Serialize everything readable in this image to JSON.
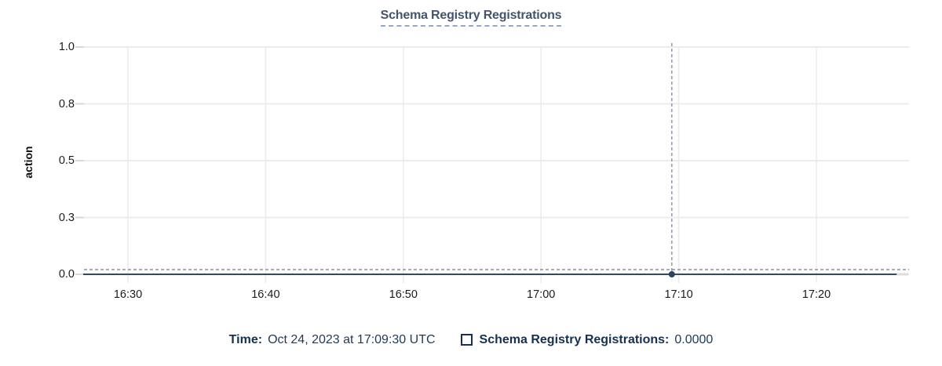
{
  "header": {
    "title": "Schema Registry Registrations"
  },
  "chart_data": {
    "type": "line",
    "title": "Schema Registry Registrations",
    "xlabel": "",
    "ylabel": "action",
    "ylim": [
      0,
      1
    ],
    "grid": true,
    "legend_position": "bottom",
    "y_tick_labels": [
      "1.0",
      "0.8",
      "0.5",
      "0.3",
      "0.0"
    ],
    "y_tick_values": [
      1.0,
      0.75,
      0.5,
      0.25,
      0.0
    ],
    "x_tick_labels": [
      "16:30",
      "16:40",
      "16:50",
      "17:00",
      "17:10",
      "17:20"
    ],
    "x_tick_interval_minutes": 10,
    "series": [
      {
        "name": "Schema Registry Registrations",
        "color": "#33495f",
        "y_constant": 0,
        "x_start": "16:26:45",
        "x_end": "17:25:50",
        "incomplete_tail_end": "17:26:40"
      }
    ],
    "hover_point": {
      "x": "17:09:30",
      "y": 0,
      "value_display": "0.0000",
      "series": "Schema Registry Registrations"
    }
  },
  "tooltip": {
    "time_label": "Time:",
    "time_value": "Oct 24, 2023 at 17:09:30 UTC",
    "series_label": "Schema Registry Registrations:",
    "series_value": "0.0000"
  },
  "colors": {
    "title_text": "#44546b",
    "title_underline": "#92a8c5",
    "axis_text": "#1c1c1c",
    "gridline": "#ececec",
    "tick_mark": "#d9d9d9",
    "series_line": "#33495f",
    "incomplete_tail": "#dcdcdc",
    "crosshair": "#7f96ac",
    "hover_dot": "#2c4257",
    "tooltip_text": "#16314f"
  }
}
